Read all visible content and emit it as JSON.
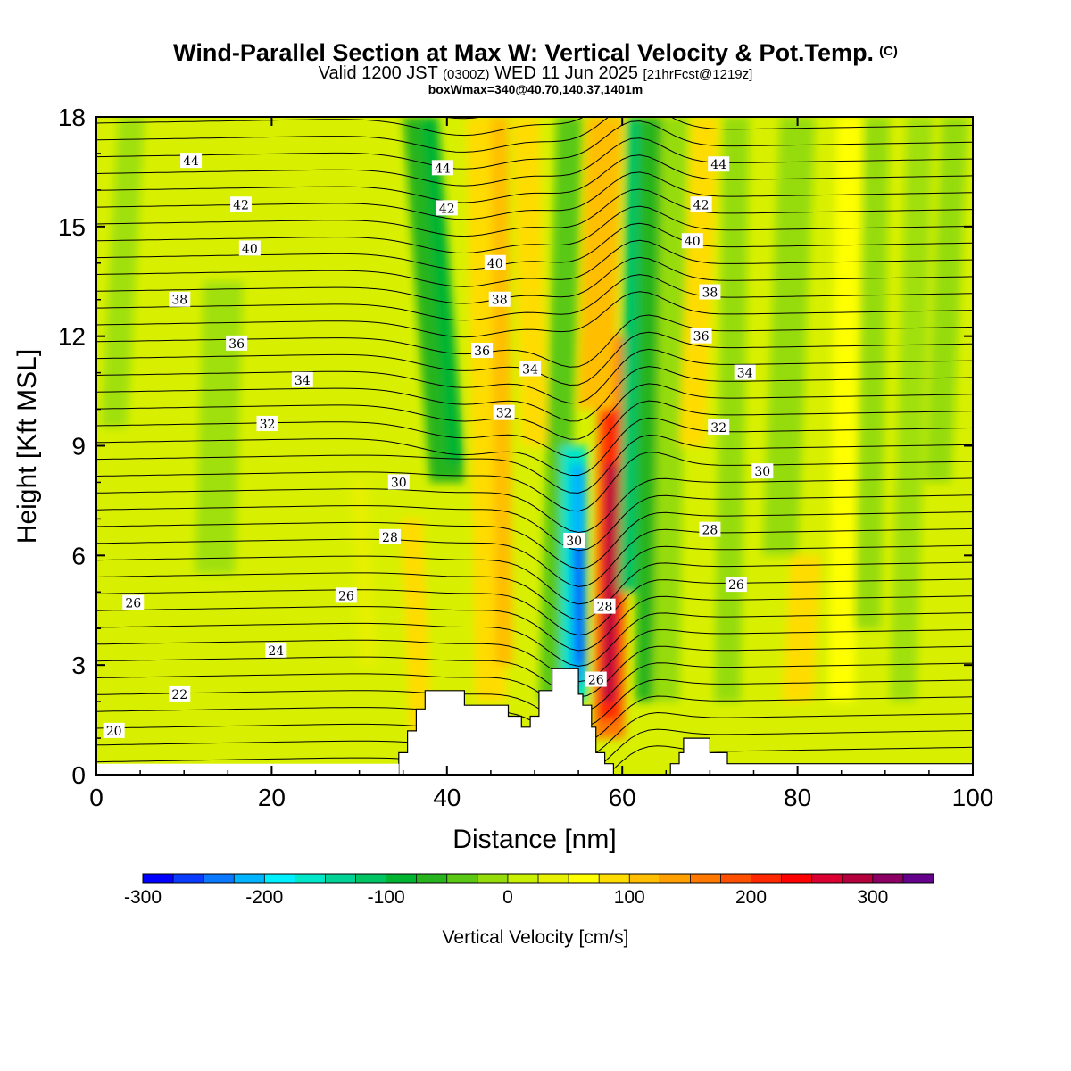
{
  "header": {
    "title": "Wind-Parallel Section at Max W: Vertical Velocity & Pot.Temp.",
    "copyright": "(C)",
    "valid_prefix": "Valid 1200 JST",
    "valid_z": "(0300Z)",
    "valid_date": "WED 11 Jun 2025",
    "forecast": "[21hrFcst@1219z]",
    "boxwmax": "boxWmax=340@40.70,140.37,1401m"
  },
  "chart_data": {
    "type": "heatmap",
    "xlabel": "Distance [nm]",
    "ylabel": "Height [Kft MSL]",
    "xlim": [
      0,
      100
    ],
    "ylim": [
      0,
      18
    ],
    "xticks": [
      0,
      20,
      40,
      60,
      80,
      100
    ],
    "yticks": [
      0,
      3,
      6,
      9,
      12,
      15,
      18
    ],
    "colorbar": {
      "label": "Vertical Velocity [cm/s]",
      "range": [
        -300,
        350
      ],
      "step": 25,
      "tick_values": [
        -300,
        -200,
        -100,
        0,
        100,
        200,
        300
      ],
      "tick_labels": [
        "-300",
        "-200",
        "-100",
        "0",
        "100",
        "200",
        "300"
      ],
      "colors": [
        "#0000ff",
        "#0a3cff",
        "#0a78ff",
        "#00b4ff",
        "#00f0ff",
        "#00e6c8",
        "#00d296",
        "#00c364",
        "#00b432",
        "#28b41e",
        "#5ac814",
        "#96dc0a",
        "#c8f000",
        "#e6f000",
        "#ffff00",
        "#ffdc00",
        "#ffbe00",
        "#ffa000",
        "#ff7800",
        "#ff5000",
        "#ff2800",
        "#ff0000",
        "#dc0032",
        "#b4003c",
        "#8c0064",
        "#64008c"
      ]
    },
    "terrain_nm_kft": [
      [
        34.5,
        0
      ],
      [
        34.5,
        0.6
      ],
      [
        35.5,
        0.6
      ],
      [
        35.5,
        1.2
      ],
      [
        36.5,
        1.2
      ],
      [
        36.5,
        1.8
      ],
      [
        37.5,
        1.8
      ],
      [
        37.5,
        2.3
      ],
      [
        39,
        2.3
      ],
      [
        39,
        2.3
      ],
      [
        42,
        2.3
      ],
      [
        42,
        1.9
      ],
      [
        47,
        1.9
      ],
      [
        47,
        1.6
      ],
      [
        48.5,
        1.6
      ],
      [
        48.5,
        1.3
      ],
      [
        49.5,
        1.3
      ],
      [
        49.5,
        1.6
      ],
      [
        50.5,
        1.6
      ],
      [
        50.5,
        2.3
      ],
      [
        52,
        2.3
      ],
      [
        52,
        2.9
      ],
      [
        55,
        2.9
      ],
      [
        55,
        2.2
      ],
      [
        55.5,
        2.2
      ],
      [
        55.5,
        1.9
      ],
      [
        56.5,
        1.9
      ],
      [
        56.5,
        1.3
      ],
      [
        57,
        1.3
      ],
      [
        57,
        0.6
      ],
      [
        58,
        0.6
      ],
      [
        58,
        0.3
      ],
      [
        59,
        0.3
      ],
      [
        59,
        0
      ],
      [
        65.5,
        0
      ],
      [
        65.5,
        0.3
      ],
      [
        66.5,
        0.3
      ],
      [
        66.5,
        0.6
      ],
      [
        67,
        0.6
      ],
      [
        67,
        1.0
      ],
      [
        70,
        1.0
      ],
      [
        70,
        0.6
      ],
      [
        72,
        0.6
      ],
      [
        72,
        0.3
      ],
      [
        100,
        0.3
      ]
    ],
    "theta_contours": [
      {
        "label": "20",
        "lx": 2,
        "ly": 1.2
      },
      {
        "label": "22",
        "lx": 9.5,
        "ly": 2.2
      },
      {
        "label": "24",
        "lx": 20.5,
        "ly": 3.4
      },
      {
        "label": "26",
        "lx": 4.2,
        "ly": 4.7
      },
      {
        "label": "26",
        "lx": 28.5,
        "ly": 4.9
      },
      {
        "label": "28",
        "lx": 33.5,
        "ly": 6.5
      },
      {
        "label": "30",
        "lx": 34.5,
        "ly": 8.0
      },
      {
        "label": "32",
        "lx": 19.5,
        "ly": 9.6
      },
      {
        "label": "34",
        "lx": 23.5,
        "ly": 10.8
      },
      {
        "label": "36",
        "lx": 16,
        "ly": 11.8
      },
      {
        "label": "38",
        "lx": 9.5,
        "ly": 13.0
      },
      {
        "label": "40",
        "lx": 17.5,
        "ly": 14.4
      },
      {
        "label": "42",
        "lx": 16.5,
        "ly": 15.6
      },
      {
        "label": "44",
        "lx": 10.8,
        "ly": 16.8
      },
      {
        "label": "44",
        "lx": 39.5,
        "ly": 16.6
      },
      {
        "label": "42",
        "lx": 40,
        "ly": 15.5
      },
      {
        "label": "40",
        "lx": 45.5,
        "ly": 14.0
      },
      {
        "label": "38",
        "lx": 46,
        "ly": 13.0
      },
      {
        "label": "36",
        "lx": 44,
        "ly": 11.6
      },
      {
        "label": "34",
        "lx": 49.5,
        "ly": 11.1
      },
      {
        "label": "32",
        "lx": 46.5,
        "ly": 9.9
      },
      {
        "label": "30",
        "lx": 54.5,
        "ly": 6.4
      },
      {
        "label": "28",
        "lx": 58,
        "ly": 4.6
      },
      {
        "label": "26",
        "lx": 57,
        "ly": 2.6
      },
      {
        "label": "44",
        "lx": 71,
        "ly": 16.7
      },
      {
        "label": "42",
        "lx": 69,
        "ly": 15.6
      },
      {
        "label": "40",
        "lx": 68,
        "ly": 14.6
      },
      {
        "label": "38",
        "lx": 70,
        "ly": 13.2
      },
      {
        "label": "36",
        "lx": 69,
        "ly": 12.0
      },
      {
        "label": "34",
        "lx": 74,
        "ly": 11.0
      },
      {
        "label": "32",
        "lx": 71,
        "ly": 9.5
      },
      {
        "label": "30",
        "lx": 76,
        "ly": 8.3
      },
      {
        "label": "28",
        "lx": 70,
        "ly": 6.7
      },
      {
        "label": "26",
        "lx": 73,
        "ly": 5.2
      }
    ]
  }
}
